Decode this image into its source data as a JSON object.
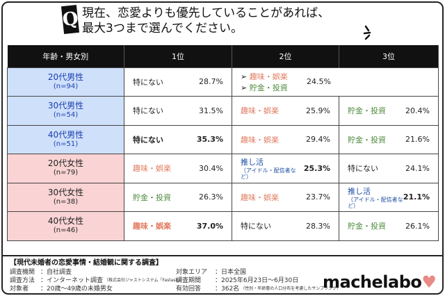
{
  "question": {
    "mark": "Q",
    "line1": "現在、恋愛よりも優先していることがあれば、",
    "line2": "最大3つまで選んでください。"
  },
  "table": {
    "headers": [
      "年齢・男女別",
      "1位",
      "2位",
      "3位"
    ],
    "rows": [
      {
        "group": "20代男性",
        "n": "(n=94)",
        "gender": "male",
        "r1": {
          "label": "特にない",
          "value": "28.7%"
        },
        "r2": {
          "labels": [
            "趣味・娯楽",
            "貯金・投資"
          ],
          "value": "24.5%"
        }
      },
      {
        "group": "30代男性",
        "n": "(n=54)",
        "gender": "male",
        "r1": {
          "label": "特にない",
          "value": "31.5%"
        },
        "r2": {
          "label": "趣味・娯楽",
          "value": "25.9%"
        },
        "r3": {
          "label": "貯金・投資",
          "value": "20.4%"
        }
      },
      {
        "group": "40代男性",
        "n": "(n=51)",
        "gender": "male",
        "r1": {
          "label": "特にない",
          "value": "35.3%"
        },
        "r2": {
          "label": "趣味・娯楽",
          "value": "29.4%"
        },
        "r3": {
          "label": "貯金・投資",
          "value": "21.6%"
        }
      },
      {
        "group": "20代女性",
        "n": "(n=79)",
        "gender": "female",
        "r1": {
          "label": "趣味・娯楽",
          "value": "30.4%"
        },
        "r2": {
          "label": "推し活",
          "sub": "（アイドル・配信者など）",
          "value": "25.3%"
        },
        "r3": {
          "label": "特にない",
          "value": "24.1%"
        }
      },
      {
        "group": "30代女性",
        "n": "(n=38)",
        "gender": "female",
        "r1": {
          "label": "貯金・投資",
          "value": "26.3%"
        },
        "r2": {
          "label": "趣味・娯楽",
          "value": "23.7%"
        },
        "r3": {
          "label": "推し活",
          "sub": "（アイドル・配信者など）",
          "value": "21.1%"
        }
      },
      {
        "group": "40代女性",
        "n": "(n=46)",
        "gender": "female",
        "r1": {
          "label": "趣味・娯楽",
          "value": "37.0%"
        },
        "r2": {
          "label": "特にない",
          "value": "28.3%"
        },
        "r3": {
          "label": "貯金・投資",
          "value": "26.1%"
        }
      }
    ]
  },
  "colors": {
    "hobby": "#e07a5f",
    "savings": "#4c8a3a",
    "oshi": "#1a4da0",
    "male_bg": "#cfe0fb",
    "female_bg": "#fad4d4"
  },
  "footer": {
    "title": "【現代未婚者の恋愛事情・結婚観に関する調査】",
    "left": [
      {
        "k": "調査機関",
        "v": "：自社調査"
      },
      {
        "k": "調査方法",
        "v": "：インターネット調査",
        "note": "（株式会社ジャストシステム「Fastask」）"
      },
      {
        "k": "対象者",
        "v": "：20歳～49歳の未婚男女"
      }
    ],
    "right": [
      {
        "k": "対象エリア",
        "v": "：日本全国"
      },
      {
        "k": "調査期間",
        "v": "：2025年6月23日～6月30日"
      },
      {
        "k": "有効回答",
        "v": "：362名",
        "note": "（性別・年齢層の人口分布を考慮したサンプリング）"
      }
    ],
    "logo": "machelabo"
  }
}
